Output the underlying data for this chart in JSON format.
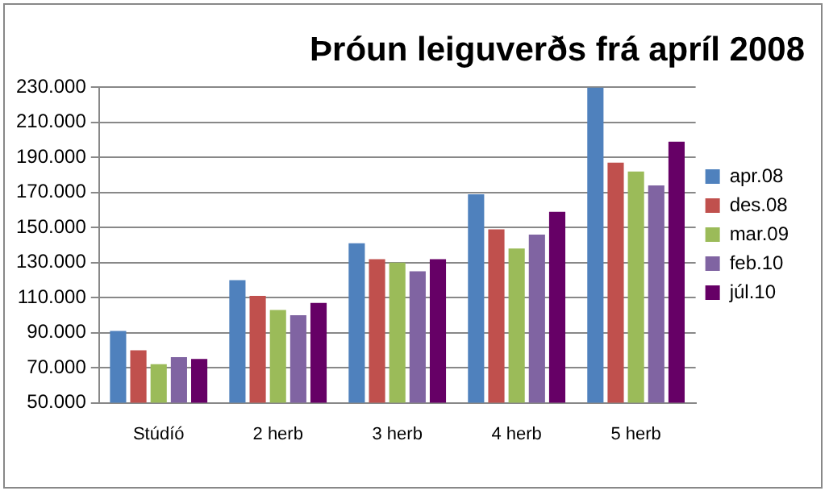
{
  "chart_data": {
    "type": "bar",
    "title": "Þróun leiguverðs frá apríl 2008",
    "categories": [
      "Stúdíó",
      "2 herb",
      "3 herb",
      "4 herb",
      "5 herb"
    ],
    "series": [
      {
        "name": "apr.08",
        "color": "#4f81bd",
        "values": [
          91000,
          120000,
          141000,
          169000,
          230000
        ]
      },
      {
        "name": "des.08",
        "color": "#c0504d",
        "values": [
          80000,
          111000,
          132000,
          149000,
          187000
        ]
      },
      {
        "name": "mar.09",
        "color": "#9bbb59",
        "values": [
          72000,
          103000,
          130000,
          138000,
          182000
        ]
      },
      {
        "name": "feb.10",
        "color": "#8064a2",
        "values": [
          76000,
          100000,
          125000,
          146000,
          174000
        ]
      },
      {
        "name": "júl.10",
        "color": "#660066",
        "values": [
          75000,
          107000,
          132000,
          159000,
          199000
        ]
      }
    ],
    "ylim": [
      50000,
      230000
    ],
    "yticks": [
      {
        "value": 50000,
        "label": "50.000"
      },
      {
        "value": 70000,
        "label": "70.000"
      },
      {
        "value": 90000,
        "label": "90.000"
      },
      {
        "value": 110000,
        "label": "110.000"
      },
      {
        "value": 130000,
        "label": "130.000"
      },
      {
        "value": 150000,
        "label": "150.000"
      },
      {
        "value": 170000,
        "label": "170.000"
      },
      {
        "value": 190000,
        "label": "190.000"
      },
      {
        "value": 210000,
        "label": "210.000"
      },
      {
        "value": 230000,
        "label": "230.000"
      }
    ],
    "grid": "y",
    "legend": "right"
  }
}
